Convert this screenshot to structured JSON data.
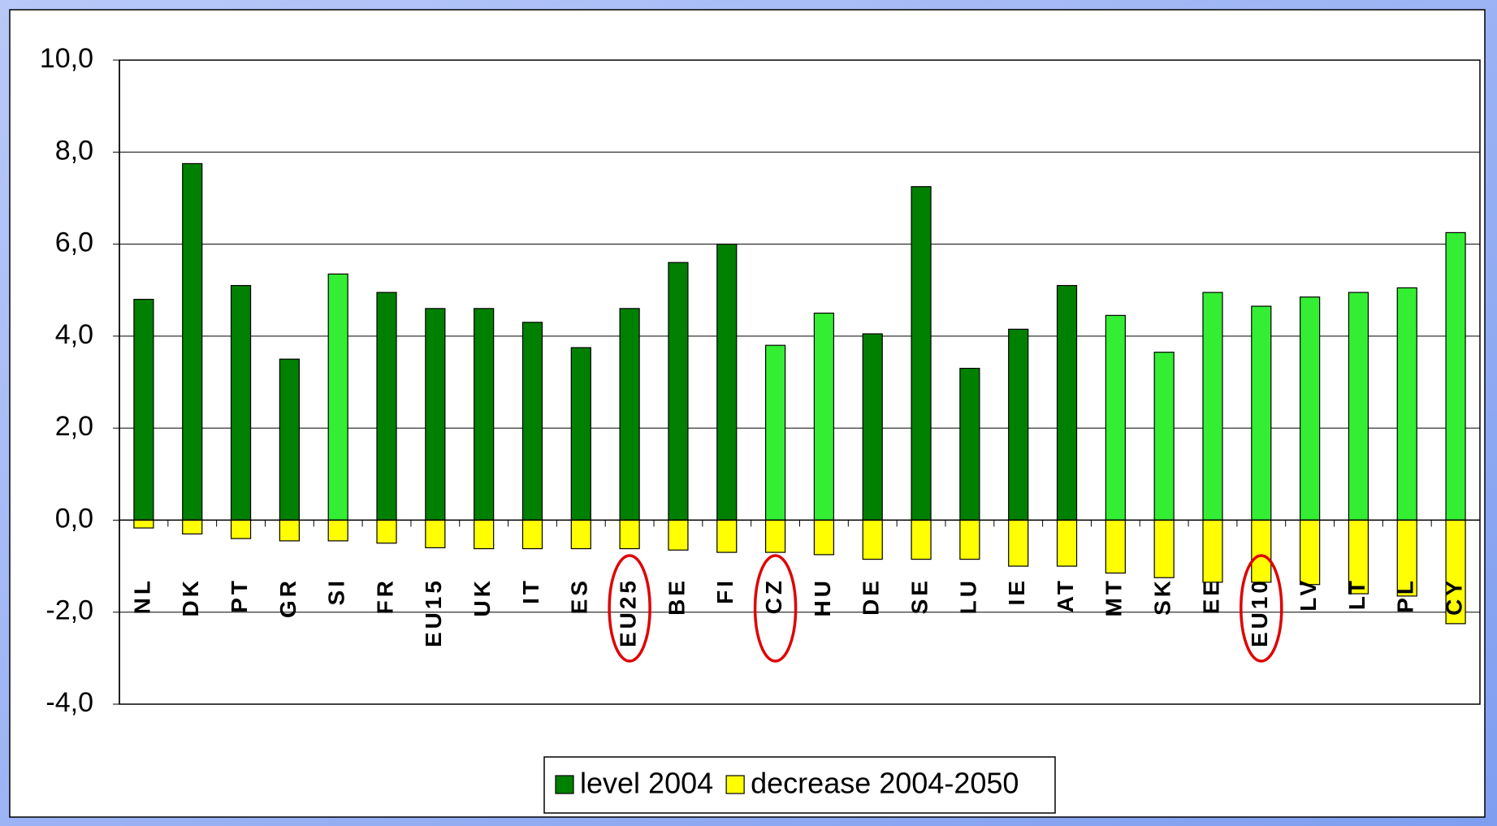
{
  "chart_data": {
    "type": "bar",
    "stacked": true,
    "categories": [
      "NL",
      "DK",
      "PT",
      "GR",
      "SI",
      "FR",
      "EU15",
      "UK",
      "IT",
      "ES",
      "EU25",
      "BE",
      "FI",
      "CZ",
      "HU",
      "DE",
      "SE",
      "LU",
      "IE",
      "AT",
      "MT",
      "SK",
      "EE",
      "EU10",
      "LV",
      "LT",
      "PL",
      "CY"
    ],
    "series": [
      {
        "name": "level 2004",
        "color": "#008000",
        "colors": [
          "#008000",
          "#008000",
          "#008000",
          "#008000",
          "#33ee33",
          "#008000",
          "#008000",
          "#008000",
          "#008000",
          "#008000",
          "#008000",
          "#008000",
          "#008000",
          "#33ee33",
          "#33ee33",
          "#008000",
          "#008000",
          "#008000",
          "#008000",
          "#008000",
          "#33ee33",
          "#33ee33",
          "#33ee33",
          "#33ee33",
          "#33ee33",
          "#33ee33",
          "#33ee33",
          "#33ee33"
        ],
        "values": [
          4.8,
          7.75,
          5.1,
          3.5,
          5.35,
          4.95,
          4.6,
          4.6,
          4.3,
          3.75,
          4.6,
          5.6,
          6.0,
          3.8,
          4.5,
          4.05,
          7.25,
          3.3,
          4.15,
          5.1,
          4.45,
          3.65,
          4.95,
          4.65,
          4.85,
          4.95,
          5.05,
          6.25
        ]
      },
      {
        "name": "decrease 2004-2050",
        "color": "#ffff00",
        "values": [
          -0.17,
          -0.3,
          -0.4,
          -0.45,
          -0.45,
          -0.5,
          -0.6,
          -0.62,
          -0.62,
          -0.62,
          -0.62,
          -0.65,
          -0.7,
          -0.7,
          -0.75,
          -0.85,
          -0.85,
          -0.85,
          -1.0,
          -1.0,
          -1.15,
          -1.25,
          -1.35,
          -1.35,
          -1.4,
          -1.6,
          -1.65,
          -2.25
        ]
      }
    ],
    "ylim": [
      -4,
      10
    ],
    "yticks": [
      {
        "value": -4,
        "label": "-4,0"
      },
      {
        "value": -2,
        "label": "-2,0"
      },
      {
        "value": 0,
        "label": "0,0"
      },
      {
        "value": 2,
        "label": "2,0"
      },
      {
        "value": 4,
        "label": "4,0"
      },
      {
        "value": 6,
        "label": "6,0"
      },
      {
        "value": 8,
        "label": "8,0"
      },
      {
        "value": 10,
        "label": "10,0"
      }
    ],
    "grid": true,
    "legend": "bottom"
  }
}
